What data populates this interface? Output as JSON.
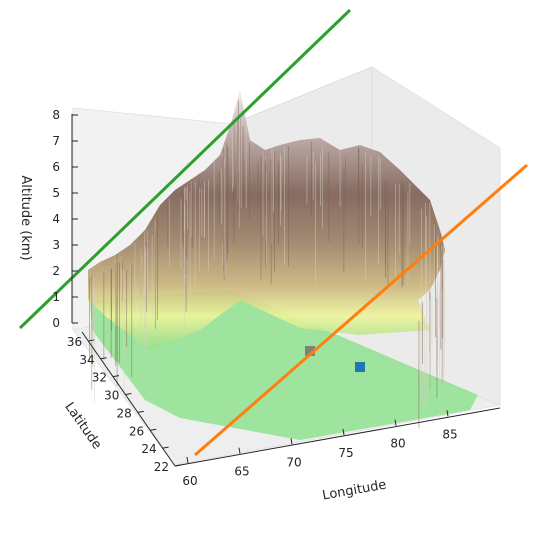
{
  "chart_data": {
    "type": "surface3d",
    "title": "",
    "axes": {
      "x": {
        "label": "Longitude",
        "range": [
          60,
          90
        ],
        "ticks": [
          60,
          65,
          70,
          75,
          80,
          85
        ]
      },
      "y": {
        "label": "Latitude",
        "range": [
          22,
          37
        ],
        "ticks": [
          22,
          24,
          26,
          28,
          30,
          32,
          34,
          36
        ]
      },
      "z": {
        "label": "Altitude (km)",
        "range": [
          0,
          8
        ],
        "ticks": [
          0,
          1,
          2,
          3,
          4,
          5,
          6,
          7,
          8
        ]
      }
    },
    "surface": {
      "colormap": "terrain",
      "colors": [
        "#8fe28f",
        "#bfe690",
        "#eef59c",
        "#c9b37a",
        "#9a7e63",
        "#7b5e52",
        "#b8a4a0",
        "#f3efee"
      ],
      "description_ranges": {
        "plains_altitude_km": [
          0,
          0.3
        ],
        "plateau_max_altitude_km": 7.8
      }
    },
    "markers": [
      {
        "name": "",
        "color": "#1f77b4",
        "shape": "square"
      },
      {
        "name": "",
        "color": "#7f7f7f",
        "shape": "square"
      }
    ],
    "lines": [
      {
        "name": "",
        "color": "#2ca02c"
      },
      {
        "name": "",
        "color": "#ff7f0e"
      }
    ],
    "grid": true,
    "legend": "none"
  }
}
